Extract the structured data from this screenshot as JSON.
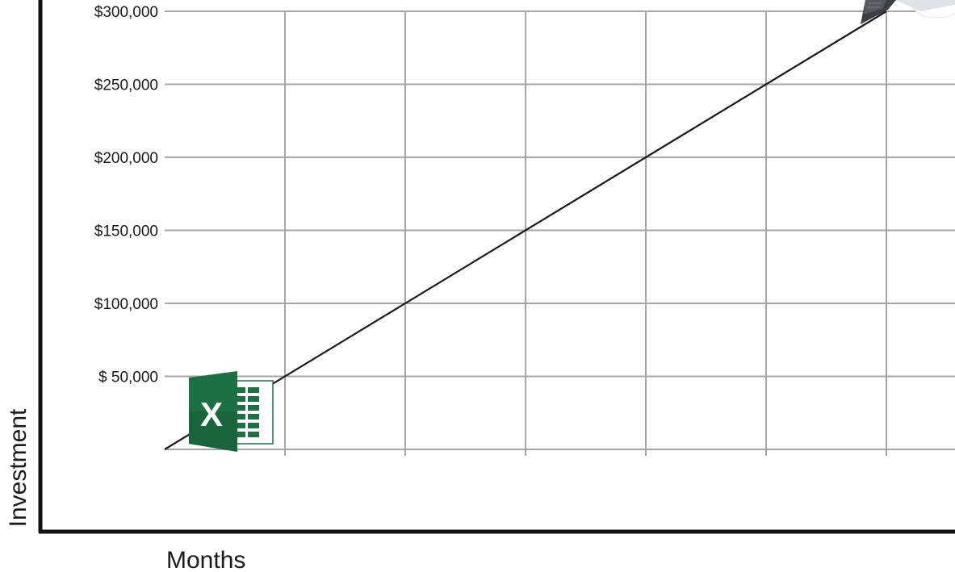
{
  "chart_data": {
    "type": "line",
    "title": "",
    "xlabel": "Months",
    "ylabel": "Investment",
    "x_tick_count": 6,
    "y_ticks": [
      50000,
      100000,
      150000,
      200000,
      250000,
      300000
    ],
    "y_tick_labels": [
      "$ 50,000",
      "$100,000",
      "$150,000",
      "$200,000",
      "$250,000",
      "$300,000"
    ],
    "ylim": [
      0,
      300000
    ],
    "xlim": [
      0,
      6
    ],
    "grid": true,
    "series": [
      {
        "x": [
          0,
          6
        ],
        "values": [
          0,
          300000
        ]
      }
    ],
    "annotations": [
      {
        "kind": "image",
        "icon": "excel-icon",
        "at": "bottom-left near start of line"
      },
      {
        "kind": "image",
        "icon": "device-icon",
        "at": "top-right near end of line"
      }
    ],
    "colors": {
      "grid": "#a6a6a6",
      "line": "#1a1a1a",
      "axis": "#111111",
      "excel_green": "#1d7044",
      "excel_dark": "#185c37",
      "device": "#3b3f45"
    }
  }
}
